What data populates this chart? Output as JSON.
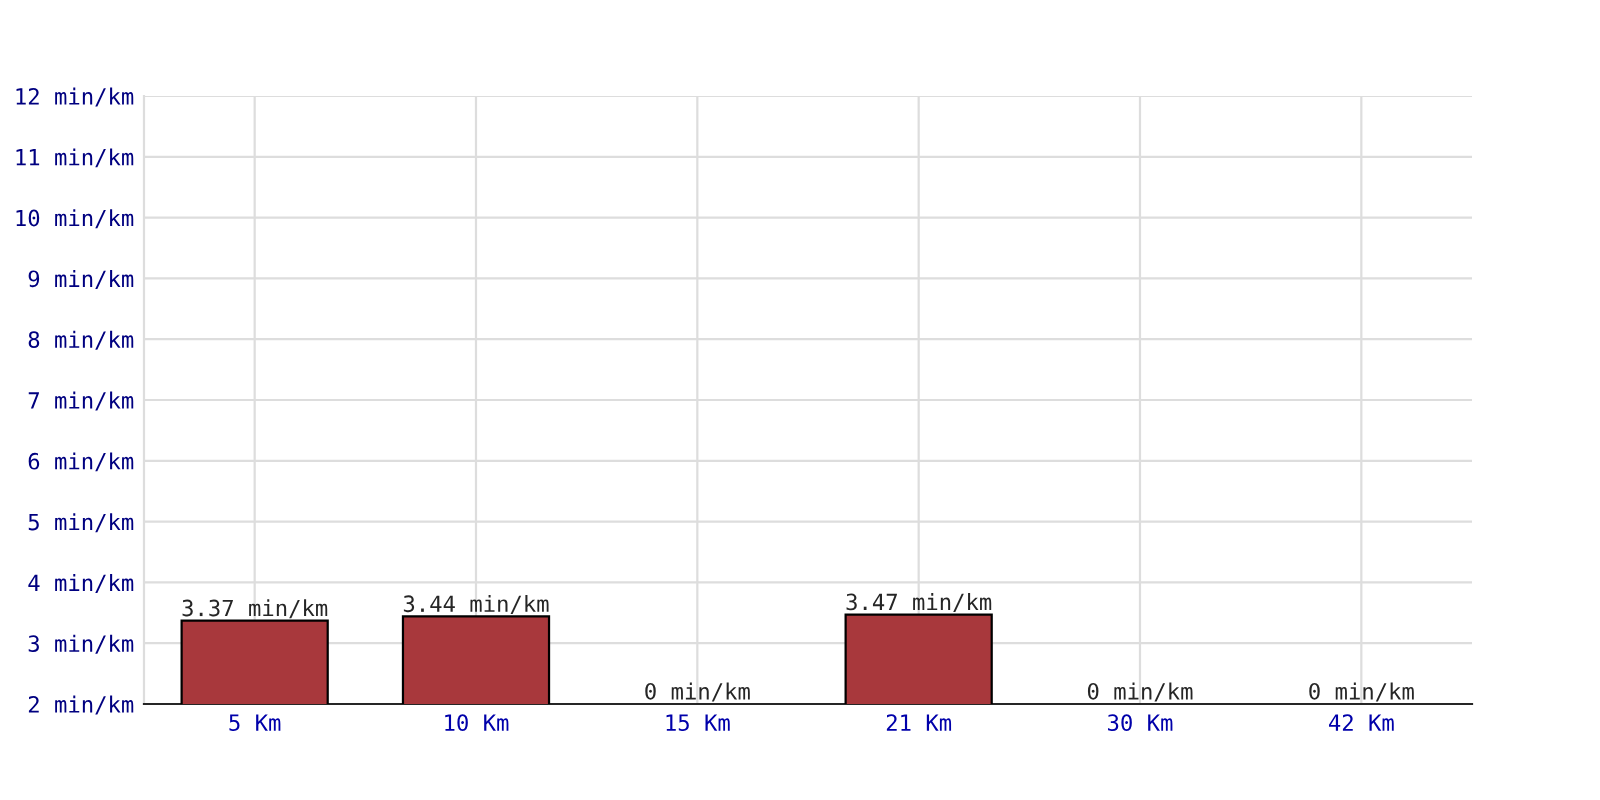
{
  "chart_data": {
    "type": "bar",
    "categories": [
      "5 Km",
      "10 Km",
      "15 Km",
      "21 Km",
      "30 Km",
      "42 Km"
    ],
    "values": [
      3.37,
      3.44,
      null,
      3.47,
      null,
      null
    ],
    "value_labels": [
      "3.37 min/km",
      "3.44 min/km",
      "0 min/km",
      "3.47 min/km",
      "0 min/km",
      "0 min/km"
    ],
    "color": "#a8383c",
    "ylim": [
      2,
      12
    ],
    "yticks": [
      {
        "value": 2,
        "label": "2 min/km"
      },
      {
        "value": 3,
        "label": "3 min/km"
      },
      {
        "value": 4,
        "label": "4 min/km"
      },
      {
        "value": 5,
        "label": "5 min/km"
      },
      {
        "value": 6,
        "label": "6 min/km"
      },
      {
        "value": 7,
        "label": "7 min/km"
      },
      {
        "value": 8,
        "label": "8 min/km"
      },
      {
        "value": 9,
        "label": "9 min/km"
      },
      {
        "value": 10,
        "label": "10 min/km"
      },
      {
        "value": 11,
        "label": "11 min/km"
      },
      {
        "value": 12,
        "label": "12 min/km"
      }
    ],
    "grid": true,
    "legend": false
  }
}
